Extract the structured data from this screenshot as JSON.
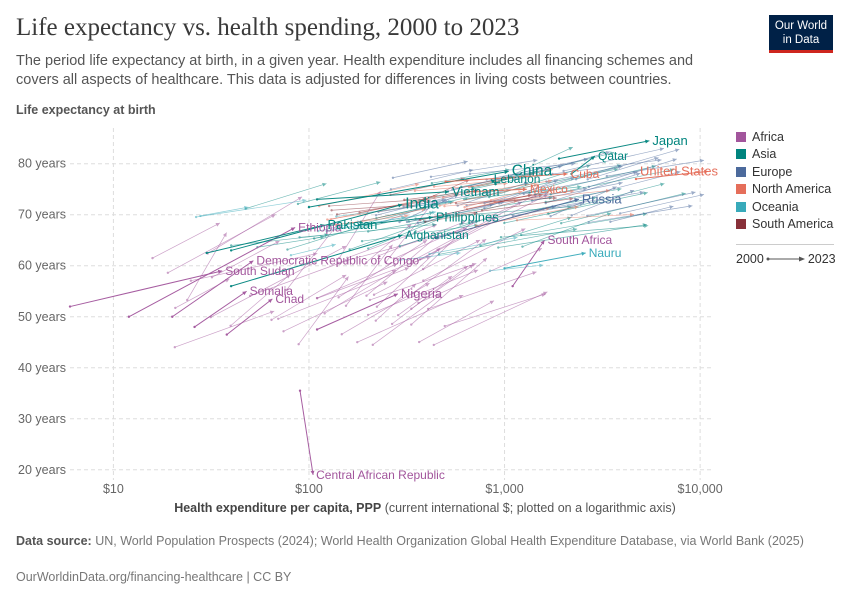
{
  "title": "Life expectancy vs. health spending, 2000 to 2023",
  "subtitle": "The period life expectancy at birth, in a given year. Health expenditure includes all financing schemes and covers all aspects of healthcare. This data is adjusted for differences in living costs between countries.",
  "logo": {
    "line1": "Our World",
    "line2": "in Data"
  },
  "legend_years": {
    "start": "2000",
    "end": "2023"
  },
  "source": {
    "label": "Data source:",
    "text": "UN, World Population Prospects (2024); World Health Organization Global Health Expenditure Database, via World Bank (2025)"
  },
  "footer": "OurWorldinData.org/financing-healthcare | CC BY",
  "chart_data": {
    "type": "scatter",
    "connected": "start-to-end arrows per country (2000 to 2023)",
    "title": "Life expectancy vs. health spending, 2000 to 2023",
    "xlabel": "Health expenditure per capita, PPP",
    "xlabel_note": "(current international $; plotted on a logarithmic axis)",
    "ylabel": "Life expectancy at birth",
    "x_scale": "log",
    "xlim": [
      6,
      11500
    ],
    "ylim": [
      18,
      87
    ],
    "x_ticks": [
      {
        "value": 10,
        "label": "$10"
      },
      {
        "value": 100,
        "label": "$100"
      },
      {
        "value": 1000,
        "label": "$1,000"
      },
      {
        "value": 10000,
        "label": "$10,000"
      }
    ],
    "y_ticks": [
      {
        "value": 20,
        "label": "20 years"
      },
      {
        "value": 30,
        "label": "30 years"
      },
      {
        "value": 40,
        "label": "40 years"
      },
      {
        "value": 50,
        "label": "50 years"
      },
      {
        "value": 60,
        "label": "60 years"
      },
      {
        "value": 70,
        "label": "70 years"
      },
      {
        "value": 80,
        "label": "80 years"
      }
    ],
    "grid": true,
    "legend_position": "right",
    "regions": [
      {
        "name": "Africa",
        "color": "#a2559c"
      },
      {
        "name": "Asia",
        "color": "#00847e"
      },
      {
        "name": "Europe",
        "color": "#4c6a9c"
      },
      {
        "name": "North America",
        "color": "#e56e5a"
      },
      {
        "name": "Oceania",
        "color": "#38aaba"
      },
      {
        "name": "South America",
        "color": "#883039"
      }
    ],
    "labeled_countries": [
      {
        "name": "Central African Republic",
        "region": "Africa",
        "x0": 90,
        "y0": 35.5,
        "x1": 105,
        "y1": 19,
        "size": "small"
      },
      {
        "name": "South Sudan",
        "region": "Africa",
        "x0": 6,
        "y0": 52,
        "x1": 36,
        "y1": 59,
        "size": "small"
      },
      {
        "name": "Somalia",
        "region": "Africa",
        "x0": 26,
        "y0": 48,
        "x1": 48,
        "y1": 55,
        "size": "small"
      },
      {
        "name": "Chad",
        "region": "Africa",
        "x0": 38,
        "y0": 46.5,
        "x1": 65,
        "y1": 53.5,
        "size": "small"
      },
      {
        "name": "Nigeria",
        "region": "Africa",
        "x0": 110,
        "y0": 47.5,
        "x1": 285,
        "y1": 54.5,
        "size": "normal"
      },
      {
        "name": "Democratic Republic of Congo",
        "region": "Africa",
        "x0": 20,
        "y0": 50,
        "x1": 52,
        "y1": 61,
        "size": "small"
      },
      {
        "name": "Ethiopia",
        "region": "Africa",
        "x0": 12,
        "y0": 50,
        "x1": 85,
        "y1": 67.5,
        "size": "small"
      },
      {
        "name": "South Africa",
        "region": "Africa",
        "x0": 1100,
        "y0": 56,
        "x1": 1600,
        "y1": 65,
        "size": "small"
      },
      {
        "name": "Afghanistan",
        "region": "Asia",
        "x0": 40,
        "y0": 56,
        "x1": 300,
        "y1": 66,
        "size": "small"
      },
      {
        "name": "Pakistan",
        "region": "Asia",
        "x0": 30,
        "y0": 62.5,
        "x1": 120,
        "y1": 68,
        "size": "normal"
      },
      {
        "name": "India",
        "region": "Asia",
        "x0": 40,
        "y0": 63,
        "x1": 300,
        "y1": 72,
        "size": "large"
      },
      {
        "name": "Philippines",
        "region": "Asia",
        "x0": 180,
        "y0": 68,
        "x1": 430,
        "y1": 69.5,
        "size": "normal"
      },
      {
        "name": "Vietnam",
        "region": "Asia",
        "x0": 110,
        "y0": 73,
        "x1": 520,
        "y1": 74.5,
        "size": "normal"
      },
      {
        "name": "China",
        "region": "Asia",
        "x0": 100,
        "y0": 71.5,
        "x1": 1050,
        "y1": 78.5,
        "size": "large"
      },
      {
        "name": "Lebanon",
        "region": "Asia",
        "x0": 900,
        "y0": 76,
        "x1": 850,
        "y1": 77,
        "size": "small"
      },
      {
        "name": "Qatar",
        "region": "Asia",
        "x0": 2200,
        "y0": 78,
        "x1": 2900,
        "y1": 81.5,
        "size": "small"
      },
      {
        "name": "Japan",
        "region": "Asia",
        "x0": 1900,
        "y0": 81,
        "x1": 5500,
        "y1": 84.5,
        "size": "normal"
      },
      {
        "name": "Russia",
        "region": "Europe",
        "x0": 450,
        "y0": 65.5,
        "x1": 2400,
        "y1": 73,
        "size": "normal"
      },
      {
        "name": "Mexico",
        "region": "North America",
        "x0": 650,
        "y0": 74.5,
        "x1": 1300,
        "y1": 75,
        "size": "small"
      },
      {
        "name": "Cuba",
        "region": "North America",
        "x0": 500,
        "y0": 76.5,
        "x1": 2100,
        "y1": 78,
        "size": "small"
      },
      {
        "name": "United States",
        "region": "North America",
        "x0": 4700,
        "y0": 77,
        "x1": 11000,
        "y1": 78.5,
        "size": "normal"
      },
      {
        "name": "Nauru",
        "region": "Oceania",
        "x0": 1000,
        "y0": 59.5,
        "x1": 2600,
        "y1": 62.5,
        "size": "small"
      }
    ]
  }
}
